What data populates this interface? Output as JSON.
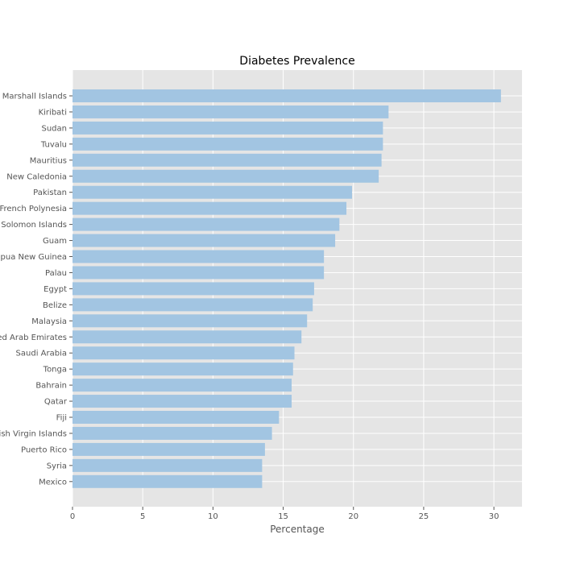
{
  "chart_data": {
    "type": "bar",
    "orientation": "horizontal",
    "title": "Diabetes Prevalence",
    "xlabel": "Percentage",
    "ylabel": "",
    "xlim": [
      0,
      32
    ],
    "xticks": [
      0,
      5,
      10,
      15,
      20,
      25,
      30
    ],
    "grid": true,
    "bar_color": "#a2c5e2",
    "plot_background": "#e5e5e5",
    "categories": [
      "Marshall Islands",
      "Kiribati",
      "Sudan",
      "Tuvalu",
      "Mauritius",
      "New Caledonia",
      "Pakistan",
      "French Polynesia",
      "Solomon Islands",
      "Guam",
      "Papua New Guinea",
      "Palau",
      "Egypt",
      "Belize",
      "Malaysia",
      "United Arab Emirates",
      "Saudi Arabia",
      "Tonga",
      "Bahrain",
      "Qatar",
      "Fiji",
      "British Virgin Islands",
      "Puerto Rico",
      "Syria",
      "Mexico"
    ],
    "values": [
      30.5,
      22.5,
      22.1,
      22.1,
      22.0,
      21.8,
      19.9,
      19.5,
      19.0,
      18.7,
      17.9,
      17.9,
      17.2,
      17.1,
      16.7,
      16.3,
      15.8,
      15.7,
      15.6,
      15.6,
      14.7,
      14.2,
      13.7,
      13.5,
      13.5
    ]
  }
}
